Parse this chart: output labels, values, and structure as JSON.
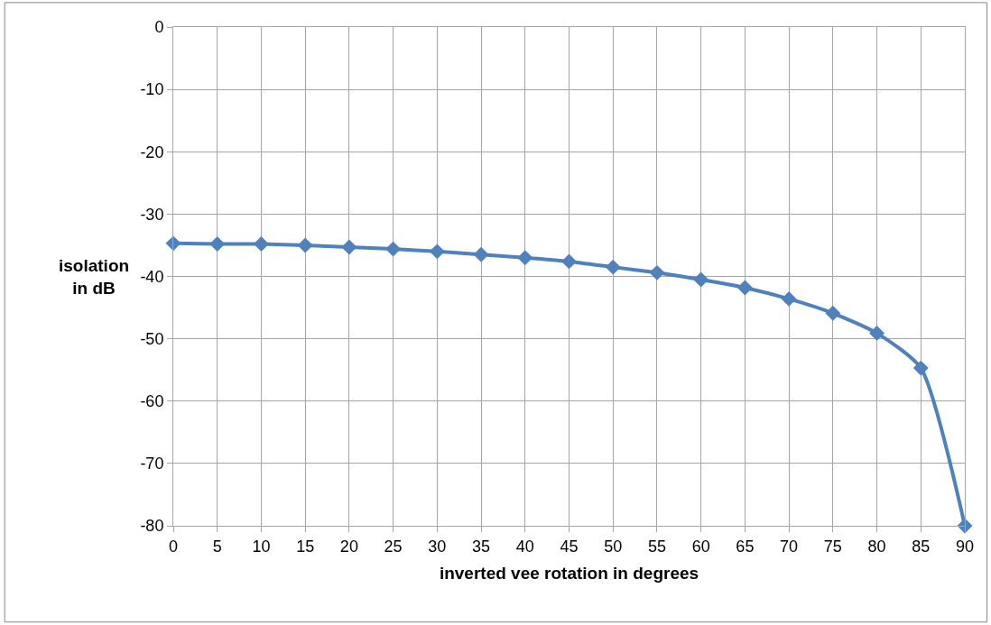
{
  "chart_data": {
    "type": "line",
    "xlabel": "inverted vee rotation in degrees",
    "ylabel": "isolation\nin dB",
    "x": [
      0,
      5,
      10,
      15,
      20,
      25,
      30,
      35,
      40,
      45,
      50,
      55,
      60,
      65,
      70,
      75,
      80,
      85,
      90
    ],
    "series": [
      {
        "color": "#4f81bd",
        "values": [
          -34.7,
          -34.8,
          -34.8,
          -35.0,
          -35.3,
          -35.6,
          -36.0,
          -36.5,
          -37.0,
          -37.6,
          -38.5,
          -39.4,
          -40.5,
          -41.8,
          -43.6,
          -45.9,
          -49.1,
          -54.7,
          -80
        ]
      }
    ],
    "xlim": [
      0,
      90
    ],
    "xticks": [
      0,
      5,
      10,
      15,
      20,
      25,
      30,
      35,
      40,
      45,
      50,
      55,
      60,
      65,
      70,
      75,
      80,
      85,
      90
    ],
    "ylim": [
      -80,
      0
    ],
    "yticks": [
      -80,
      -70,
      -60,
      -50,
      -40,
      -30,
      -20,
      -10,
      0
    ],
    "grid": true,
    "marker": "diamond",
    "line_style": "solid"
  }
}
